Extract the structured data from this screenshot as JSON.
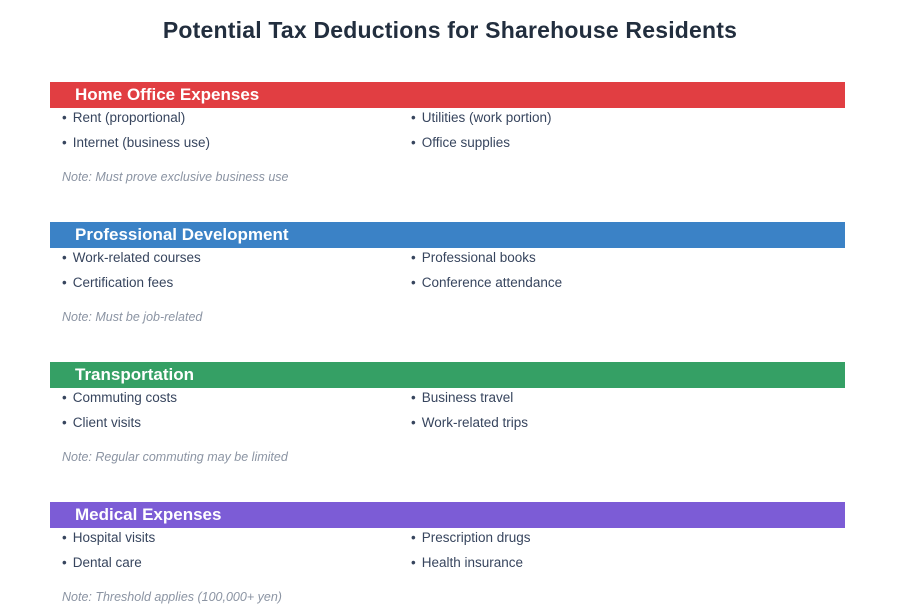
{
  "page": {
    "title": "Potential Tax Deductions for Sharehouse Residents"
  },
  "bullet_glyph": "•",
  "sections": [
    {
      "title": "Home Office Expenses",
      "color": "#e13e42",
      "items": [
        "Rent (proportional)",
        "Utilities (work portion)",
        "Internet (business use)",
        "Office supplies"
      ],
      "note": "Note: Must prove exclusive business use"
    },
    {
      "title": "Professional Development",
      "color": "#3b82c6",
      "items": [
        "Work-related courses",
        "Professional books",
        "Certification fees",
        "Conference attendance"
      ],
      "note": "Note: Must be job-related"
    },
    {
      "title": "Transportation",
      "color": "#35a065",
      "items": [
        "Commuting costs",
        "Business travel",
        "Client visits",
        "Work-related trips"
      ],
      "note": "Note: Regular commuting may be limited"
    },
    {
      "title": "Medical Expenses",
      "color": "#7c5cd6",
      "items": [
        "Hospital visits",
        "Prescription drugs",
        "Dental care",
        "Health insurance"
      ],
      "note": "Note: Threshold applies (100,000+ yen)"
    }
  ]
}
